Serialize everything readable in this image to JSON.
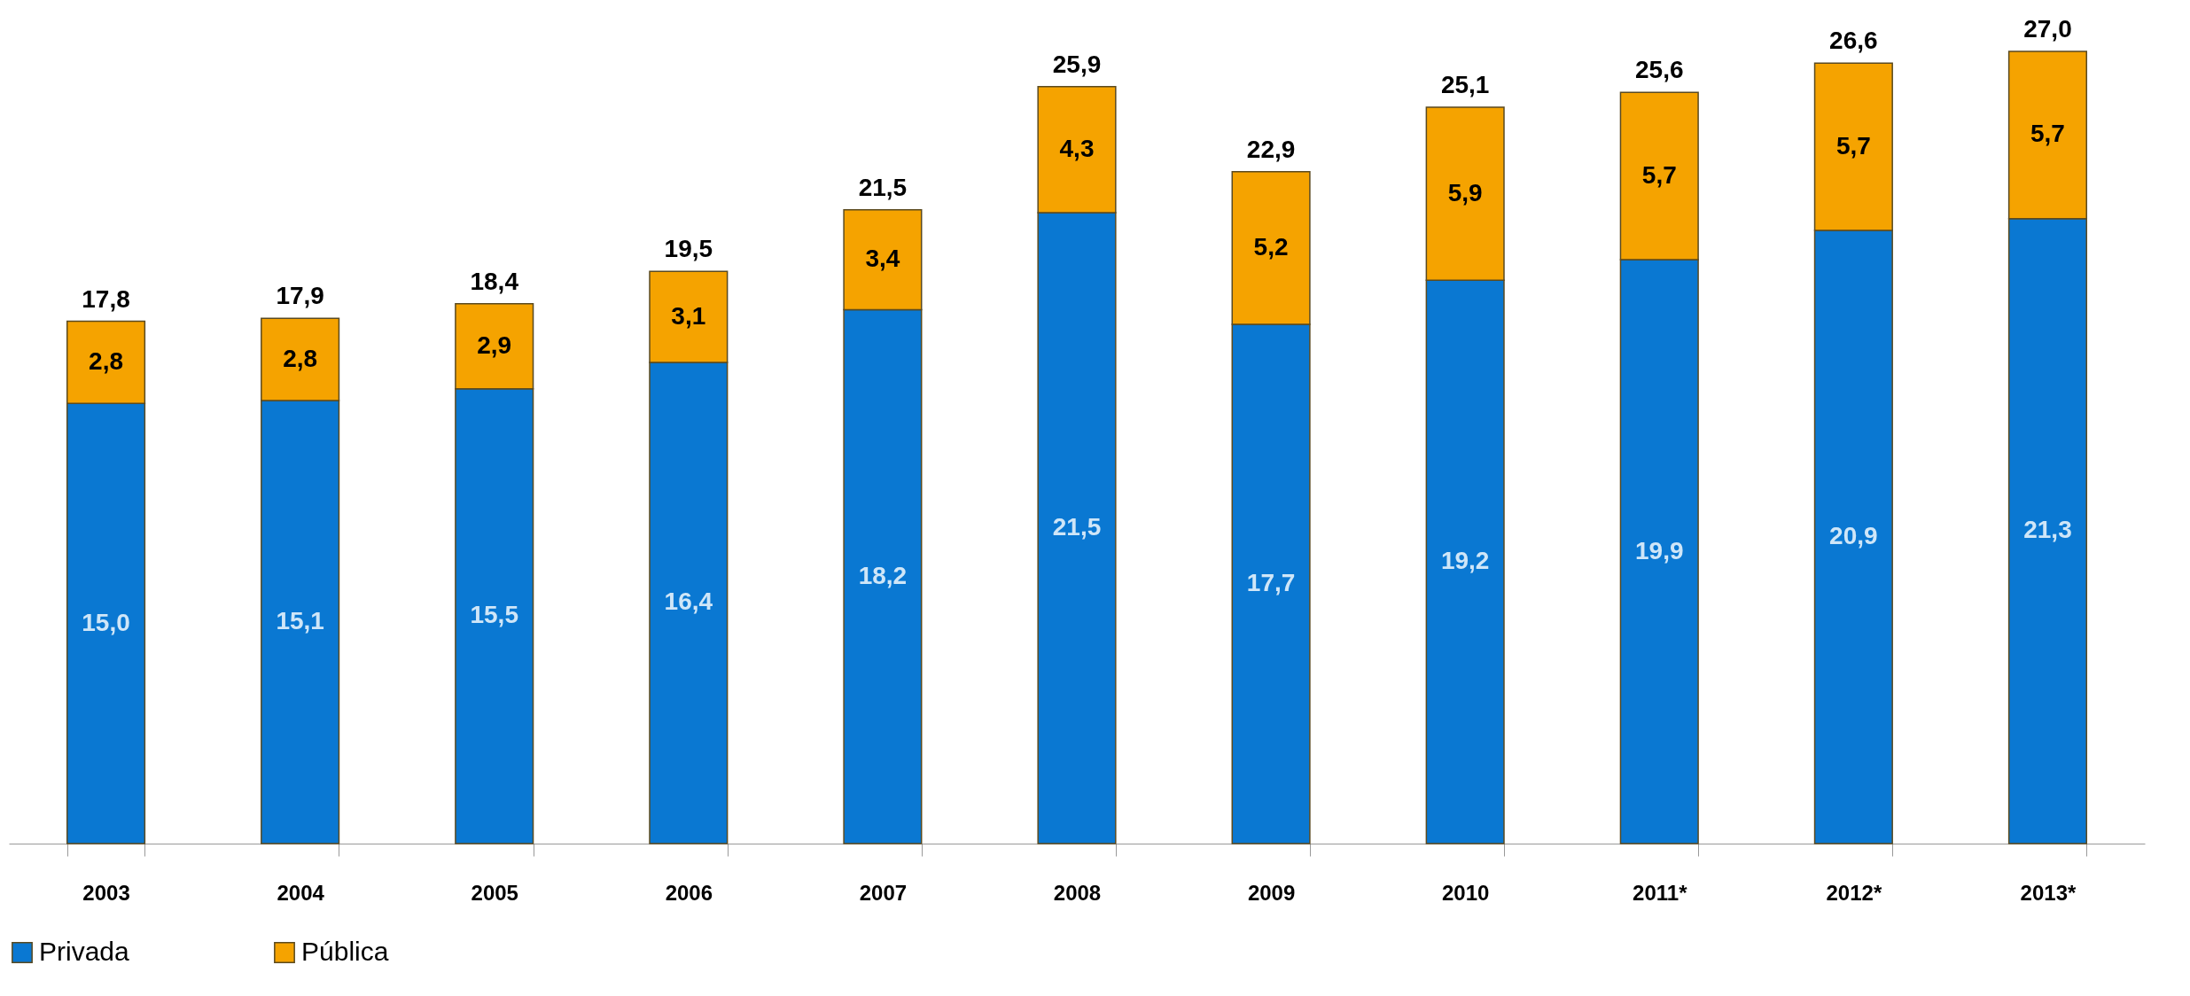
{
  "chart_data": {
    "type": "bar",
    "stacked": true,
    "categories": [
      "2003",
      "2004",
      "2005",
      "2006",
      "2007",
      "2008",
      "2009",
      "2010",
      "2011*",
      "2012*",
      "2013*"
    ],
    "series": [
      {
        "name": "Privada",
        "color": "#0a78d2",
        "values": [
          15.0,
          15.1,
          15.5,
          16.4,
          18.2,
          21.5,
          17.7,
          19.2,
          19.9,
          20.9,
          21.3
        ],
        "value_labels": [
          "15,0",
          "15,1",
          "15,5",
          "16,4",
          "18,2",
          "21,5",
          "17,7",
          "19,2",
          "19,9",
          "20,9",
          "21,3"
        ]
      },
      {
        "name": "Pública",
        "color": "#f5a300",
        "values": [
          2.8,
          2.8,
          2.9,
          3.1,
          3.4,
          4.3,
          5.2,
          5.9,
          5.7,
          5.7,
          5.7
        ],
        "value_labels": [
          "2,8",
          "2,8",
          "2,9",
          "3,1",
          "3,4",
          "4,3",
          "5,2",
          "5,9",
          "5,7",
          "5,7",
          "5,7"
        ]
      }
    ],
    "totals": [
      "17,8",
      "17,9",
      "18,4",
      "19,5",
      "21,5",
      "25,9",
      "22,9",
      "25,1",
      "25,6",
      "26,6",
      "27,0"
    ],
    "legend": "bottom",
    "grid": false
  }
}
